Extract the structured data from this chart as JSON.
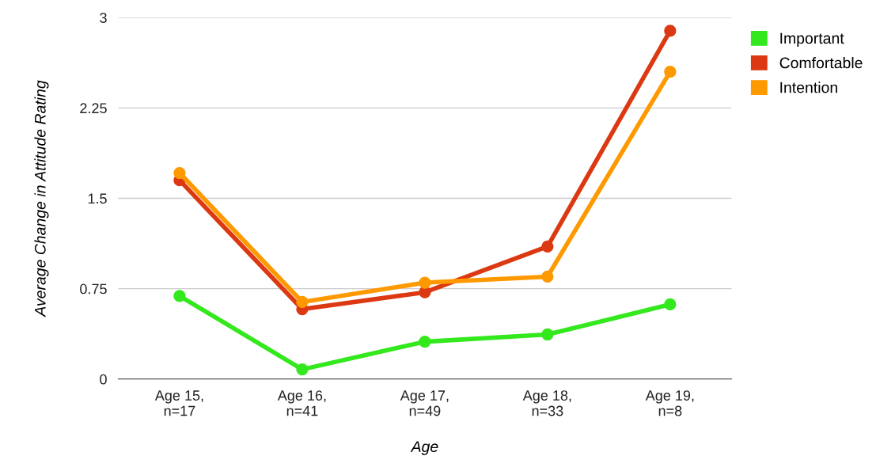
{
  "chart_data": {
    "type": "line",
    "xlabel": "Age",
    "ylabel": "Average Change in Attitude Rating",
    "categories": [
      "Age 15,\nn=17",
      "Age 16,\nn=41",
      "Age 17,\nn=49",
      "Age 18,\nn=33",
      "Age 19,\nn=8"
    ],
    "series": [
      {
        "name": "Important",
        "color": "#33e81c",
        "values": [
          0.69,
          0.08,
          0.31,
          0.37,
          0.62
        ]
      },
      {
        "name": "Comfortable",
        "color": "#dc3912",
        "values": [
          1.65,
          0.58,
          0.72,
          1.1,
          2.89
        ]
      },
      {
        "name": "Intention",
        "color": "#ff9900",
        "values": [
          1.71,
          0.64,
          0.8,
          0.85,
          2.55
        ]
      }
    ],
    "ylim": [
      0,
      3
    ],
    "yticks": [
      0,
      0.75,
      1.5,
      2.25,
      3
    ],
    "grid": "y",
    "legend": "top right",
    "marker": "circle",
    "line_style": "solid"
  }
}
